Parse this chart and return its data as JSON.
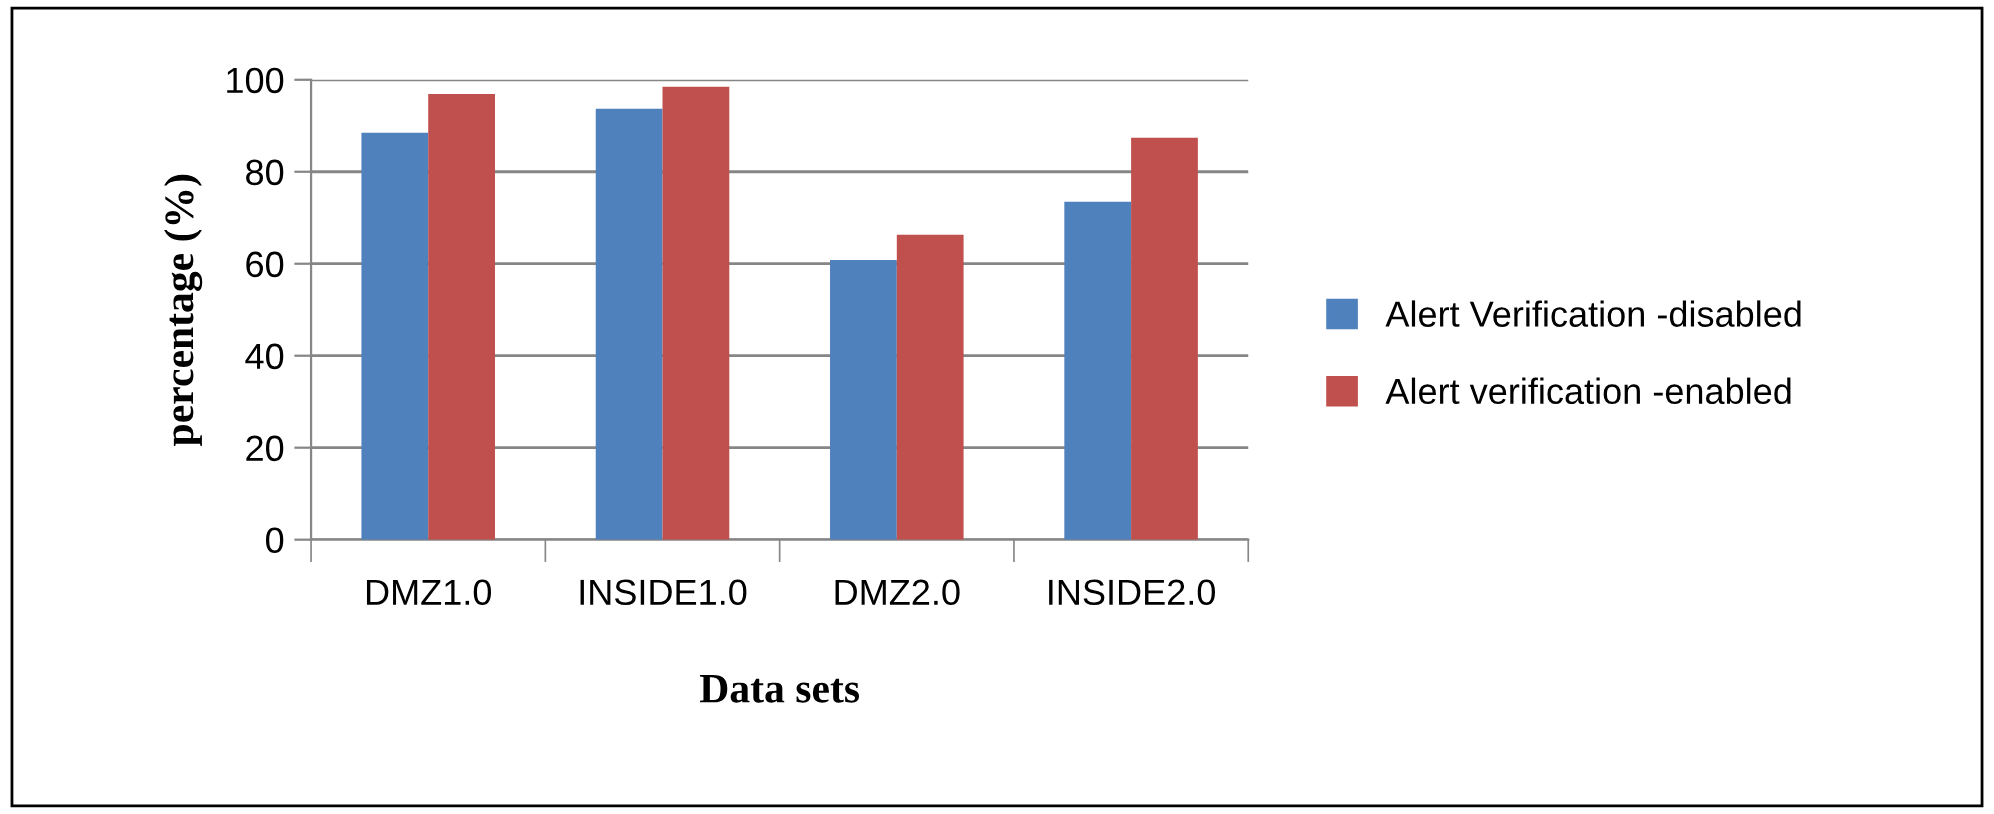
{
  "chart_data": {
    "type": "bar",
    "xlabel": "Data sets",
    "ylabel": "percentage (%)",
    "categories": [
      "DMZ1.0",
      "INSIDE1.0",
      "DMZ2.0",
      "INSIDE2.0"
    ],
    "series": [
      {
        "name": "Alert Verification -disabled",
        "color": "#4f81bd",
        "values": [
          88.5,
          93.7,
          60.8,
          73.5
        ]
      },
      {
        "name": "Alert verification -enabled",
        "color": "#c0504d",
        "values": [
          96.9,
          98.5,
          66.3,
          87.4
        ]
      }
    ],
    "ylim": [
      0,
      100
    ],
    "yticks": [
      0,
      20,
      40,
      60,
      80,
      100
    ],
    "grid": "y",
    "legend": "right"
  }
}
